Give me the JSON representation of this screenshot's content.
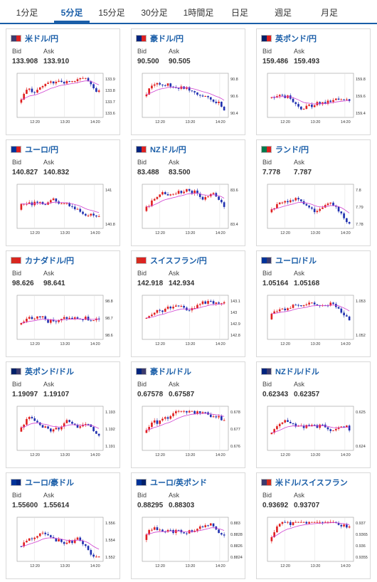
{
  "tabs": [
    "1分足",
    "5分足",
    "15分足",
    "30分足",
    "1時間足",
    "日足",
    "週足",
    "月足"
  ],
  "active_tab": 1,
  "common": {
    "bid_label": "Bid",
    "ask_label": "Ask"
  },
  "cards": [
    {
      "pair": "米ドル/円",
      "bid": "133.908",
      "ask": "133.910",
      "flag": [
        "#3c3b6e",
        "#d22"
      ],
      "ticks": [
        "133.9",
        "133.8",
        "133.7",
        "133.6"
      ],
      "x": [
        "12:20",
        "13:20",
        "14:20"
      ]
    },
    {
      "pair": "豪ドル/円",
      "bid": "90.500",
      "ask": "90.505",
      "flag": [
        "#00247d",
        "#d22"
      ],
      "ticks": [
        "90.8",
        "90.6",
        "90.4"
      ],
      "x": [
        "12:20",
        "13:20",
        "14:20"
      ]
    },
    {
      "pair": "英ポンド/円",
      "bid": "159.486",
      "ask": "159.493",
      "flag": [
        "#012169",
        "#d22"
      ],
      "ticks": [
        "159.8",
        "159.6",
        "159.4"
      ],
      "x": [
        "12:20",
        "13:20",
        "14:20"
      ]
    },
    {
      "pair": "ユーロ/円",
      "bid": "140.827",
      "ask": "140.832",
      "flag": [
        "#003399",
        "#d22"
      ],
      "ticks": [
        "141",
        "140.8"
      ],
      "x": [
        "12:20",
        "13:20",
        "14:20"
      ]
    },
    {
      "pair": "NZドル/円",
      "bid": "83.488",
      "ask": "83.500",
      "flag": [
        "#00247d",
        "#d22"
      ],
      "ticks": [
        "83.6",
        "83.4"
      ],
      "x": [
        "12:20",
        "13:20",
        "14:20"
      ]
    },
    {
      "pair": "ランド/円",
      "bid": "7.778",
      "ask": "7.787",
      "flag": [
        "#007a4d",
        "#d22"
      ],
      "ticks": [
        "7.8",
        "7.79",
        "7.78"
      ],
      "x": [
        "12:20",
        "13:20",
        "14:20"
      ]
    },
    {
      "pair": "カナダドル/円",
      "bid": "98.626",
      "ask": "98.641",
      "flag": [
        "#d52b1e",
        "#d22"
      ],
      "ticks": [
        "98.8",
        "98.7",
        "98.6"
      ],
      "x": [
        "12:20",
        "13:20",
        "14:20"
      ]
    },
    {
      "pair": "スイスフラン/円",
      "bid": "142.918",
      "ask": "142.934",
      "flag": [
        "#d52b1e",
        "#d22"
      ],
      "ticks": [
        "143.1",
        "143",
        "142.9",
        "142.8"
      ],
      "x": [
        "12:20",
        "13:20",
        "14:20"
      ]
    },
    {
      "pair": "ユーロ/ドル",
      "bid": "1.05164",
      "ask": "1.05168",
      "flag": [
        "#003399",
        "#3c3b6e"
      ],
      "ticks": [
        "1.053",
        "1.052"
      ],
      "x": [
        "12:20",
        "13:20",
        "14:20"
      ]
    },
    {
      "pair": "英ポンド/ドル",
      "bid": "1.19097",
      "ask": "1.19107",
      "flag": [
        "#012169",
        "#3c3b6e"
      ],
      "ticks": [
        "1.193",
        "1.192",
        "1.191"
      ],
      "x": [
        "12:20",
        "13:20",
        "14:20"
      ]
    },
    {
      "pair": "豪ドル/ドル",
      "bid": "0.67578",
      "ask": "0.67587",
      "flag": [
        "#00247d",
        "#3c3b6e"
      ],
      "ticks": [
        "0.678",
        "0.677",
        "0.676"
      ],
      "x": [
        "12:20",
        "13:20",
        "14:20"
      ]
    },
    {
      "pair": "NZドル/ドル",
      "bid": "0.62343",
      "ask": "0.62357",
      "flag": [
        "#00247d",
        "#3c3b6e"
      ],
      "ticks": [
        "0.625",
        "0.624"
      ],
      "x": [
        "12:20",
        "13:20",
        "14:20"
      ]
    },
    {
      "pair": "ユーロ/豪ドル",
      "bid": "1.55600",
      "ask": "1.55614",
      "flag": [
        "#003399",
        "#00247d"
      ],
      "ticks": [
        "1.556",
        "1.554",
        "1.552"
      ],
      "x": [
        "12:20",
        "13:20",
        "14:20"
      ]
    },
    {
      "pair": "ユーロ/英ポンド",
      "bid": "0.88295",
      "ask": "0.88303",
      "flag": [
        "#003399",
        "#012169"
      ],
      "ticks": [
        "0.883",
        "0.8828",
        "0.8826",
        "0.8824"
      ],
      "x": [
        "12:20",
        "13:20",
        "14:20"
      ]
    },
    {
      "pair": "米ドル/スイスフラン",
      "bid": "0.93692",
      "ask": "0.93707",
      "flag": [
        "#3c3b6e",
        "#d52b1e"
      ],
      "ticks": [
        "0.937",
        "0.9365",
        "0.936",
        "0.9355"
      ],
      "x": [
        "12:20",
        "13:20",
        "14:20"
      ]
    }
  ]
}
